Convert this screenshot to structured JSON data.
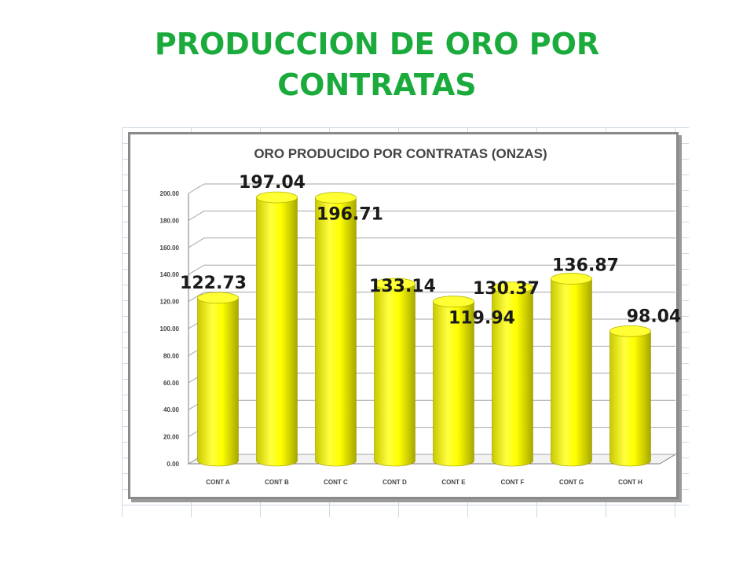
{
  "slide": {
    "title_line1": "PRODUCCION DE ORO POR",
    "title_line2": "CONTRATAS"
  },
  "colors": {
    "title": "#1aab3c",
    "bar": "#ffff00",
    "bar_shadow": "#b8b800"
  },
  "chart_data": {
    "type": "bar",
    "title": "ORO PRODUCIDO POR CONTRATAS (ONZAS)",
    "categories": [
      "CONT A",
      "CONT B",
      "CONT C",
      "CONT D",
      "CONT E",
      "CONT F",
      "CONT G",
      "CONT H"
    ],
    "values": [
      122.73,
      197.04,
      196.71,
      133.14,
      119.94,
      130.37,
      136.87,
      98.04
    ],
    "data_labels": [
      "122.73",
      "197.04",
      "196.71",
      "133.14",
      "119.94",
      "130.37",
      "136.87",
      "98.04"
    ],
    "yticks": [
      "0.00",
      "20.00",
      "40.00",
      "60.00",
      "80.00",
      "100.00",
      "120.00",
      "140.00",
      "160.00",
      "180.00",
      "200.00"
    ],
    "ylim": [
      0,
      200
    ],
    "xlabel": "",
    "ylabel": "",
    "grid": true,
    "style": "3d-cylinder"
  }
}
